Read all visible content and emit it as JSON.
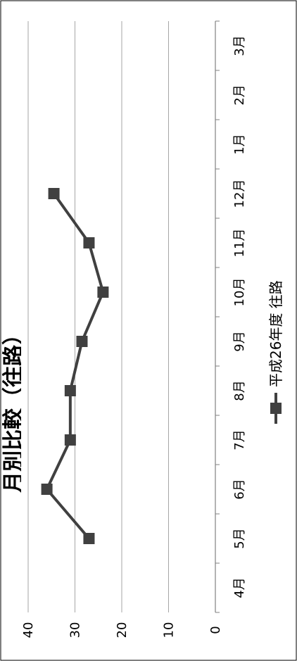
{
  "chart_data": {
    "type": "line",
    "orientation": "rotated-90",
    "title": "月別比較（往路）",
    "categories": [
      "4月",
      "5月",
      "6月",
      "7月",
      "8月",
      "9月",
      "10月",
      "11月",
      "12月",
      "1月",
      "2月",
      "3月"
    ],
    "series": [
      {
        "name": "平成26年度 往路",
        "values": [
          null,
          27,
          36,
          31,
          31,
          28.5,
          24,
          27,
          34.5,
          null,
          null,
          null
        ],
        "color": "#404040",
        "marker": "square"
      }
    ],
    "ylim": [
      0,
      40
    ],
    "yticks": [
      "40",
      "30",
      "20",
      "10",
      "0"
    ],
    "grid": true,
    "legend_position": "bottom"
  }
}
